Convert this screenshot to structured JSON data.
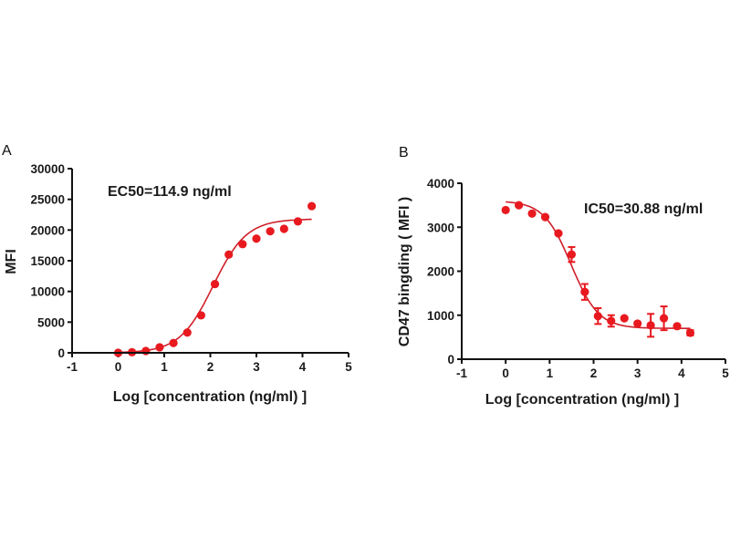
{
  "colors": {
    "series": "#e8191f",
    "curve": "#d0202a",
    "axis": "#111111"
  },
  "chart_data": [
    {
      "panel": "A",
      "type": "scatter",
      "title": "",
      "annotation": "EC50=114.9 ng/ml",
      "xlabel": "Log [concentration (ng/ml) ]",
      "ylabel": "MFI",
      "xlim": [
        -1,
        5
      ],
      "ylim": [
        0,
        30000
      ],
      "xticks": [
        "-1",
        "0",
        "1",
        "2",
        "3",
        "4",
        "5"
      ],
      "yticks": [
        "0",
        "5000",
        "10000",
        "15000",
        "20000",
        "25000",
        "30000"
      ],
      "grid": false,
      "series": [
        {
          "name": "data",
          "x": [
            0,
            0.3,
            0.6,
            0.9,
            1.2,
            1.5,
            1.8,
            2.1,
            2.4,
            2.7,
            3.0,
            3.3,
            3.6,
            3.9,
            4.2
          ],
          "y": [
            0,
            100,
            300,
            900,
            1600,
            3300,
            6100,
            11200,
            16000,
            17700,
            18600,
            19800,
            20200,
            21400,
            23900
          ]
        }
      ],
      "fit": {
        "model": "4PL",
        "bottom": 0,
        "top": 21800,
        "log_ec50": 2.06,
        "hill": 1.2,
        "x_range": [
          0,
          4.2
        ]
      }
    },
    {
      "panel": "B",
      "type": "scatter",
      "title": "",
      "annotation": "IC50=30.88 ng/ml",
      "xlabel": "Log  [concentration (ng/ml) ]",
      "ylabel": "CD47 bingding ( MFI )",
      "xlim": [
        -1,
        5
      ],
      "ylim": [
        0,
        4000
      ],
      "xticks": [
        "-1",
        "0",
        "1",
        "2",
        "3",
        "4",
        "5"
      ],
      "yticks": [
        "0",
        "1000",
        "2000",
        "3000",
        "4000"
      ],
      "grid": false,
      "series": [
        {
          "name": "data",
          "x": [
            0,
            0.3,
            0.6,
            0.9,
            1.2,
            1.5,
            1.8,
            2.1,
            2.4,
            2.7,
            3.0,
            3.3,
            3.6,
            3.9,
            4.2
          ],
          "y": [
            3390,
            3500,
            3310,
            3230,
            2860,
            2380,
            1530,
            980,
            870,
            930,
            810,
            770,
            930,
            750,
            600
          ],
          "error": [
            0,
            0,
            0,
            0,
            0,
            170,
            180,
            180,
            130,
            0,
            0,
            260,
            270,
            0,
            60
          ]
        }
      ],
      "fit": {
        "model": "4PL",
        "bottom": 700,
        "top": 3600,
        "log_ic50": 1.49,
        "hill": -1.4,
        "x_range": [
          0,
          4.2
        ]
      }
    }
  ]
}
